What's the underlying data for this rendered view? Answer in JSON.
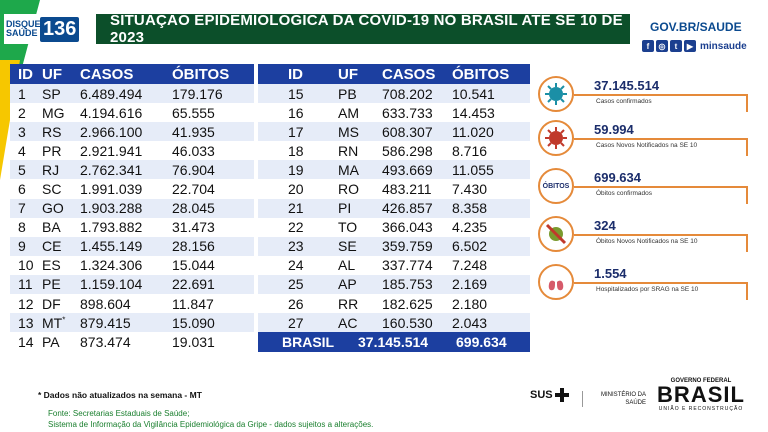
{
  "header": {
    "disque_label": "DISQUE SAÚDE",
    "disque_number": "136",
    "title": "SITUAÇÃO EPIDEMIOLÓGICA DA COVID-19 NO BRASIL ATÉ SE 10 DE 2023",
    "gov_text": "GOV.BR/SAUDE",
    "social_handle": "minsaude"
  },
  "table": {
    "columns": [
      "ID",
      "UF",
      "CASOS",
      "ÓBITOS"
    ],
    "left_rows": [
      {
        "id": "1",
        "uf": "SP",
        "casos": "6.489.494",
        "obitos": "179.176"
      },
      {
        "id": "2",
        "uf": "MG",
        "casos": "4.194.616",
        "obitos": "65.555"
      },
      {
        "id": "3",
        "uf": "RS",
        "casos": "2.966.100",
        "obitos": "41.935"
      },
      {
        "id": "4",
        "uf": "PR",
        "casos": "2.921.941",
        "obitos": "46.033"
      },
      {
        "id": "5",
        "uf": "RJ",
        "casos": "2.762.341",
        "obitos": "76.904"
      },
      {
        "id": "6",
        "uf": "SC",
        "casos": "1.991.039",
        "obitos": "22.704"
      },
      {
        "id": "7",
        "uf": "GO",
        "casos": "1.903.288",
        "obitos": "28.045"
      },
      {
        "id": "8",
        "uf": "BA",
        "casos": "1.793.882",
        "obitos": "31.473"
      },
      {
        "id": "9",
        "uf": "CE",
        "casos": "1.455.149",
        "obitos": "28.156"
      },
      {
        "id": "10",
        "uf": "ES",
        "casos": "1.324.306",
        "obitos": "15.044"
      },
      {
        "id": "11",
        "uf": "PE",
        "casos": "1.159.104",
        "obitos": "22.691"
      },
      {
        "id": "12",
        "uf": "DF",
        "casos": "898.604",
        "obitos": "11.847"
      },
      {
        "id": "13",
        "uf": "MT",
        "uf_mark": "*",
        "casos": "879.415",
        "obitos": "15.090"
      },
      {
        "id": "14",
        "uf": "PA",
        "casos": "873.474",
        "obitos": "19.031"
      }
    ],
    "right_rows": [
      {
        "id": "15",
        "uf": "PB",
        "casos": "708.202",
        "obitos": "10.541"
      },
      {
        "id": "16",
        "uf": "AM",
        "casos": "633.733",
        "obitos": "14.453"
      },
      {
        "id": "17",
        "uf": "MS",
        "casos": "608.307",
        "obitos": "11.020"
      },
      {
        "id": "18",
        "uf": "RN",
        "casos": "586.298",
        "obitos": "8.716"
      },
      {
        "id": "19",
        "uf": "MA",
        "casos": "493.669",
        "obitos": "11.055"
      },
      {
        "id": "20",
        "uf": "RO",
        "casos": "483.211",
        "obitos": "7.430"
      },
      {
        "id": "21",
        "uf": "PI",
        "casos": "426.857",
        "obitos": "8.358"
      },
      {
        "id": "22",
        "uf": "TO",
        "casos": "366.043",
        "obitos": "4.235"
      },
      {
        "id": "23",
        "uf": "SE",
        "casos": "359.759",
        "obitos": "6.502"
      },
      {
        "id": "24",
        "uf": "AL",
        "casos": "337.774",
        "obitos": "7.248"
      },
      {
        "id": "25",
        "uf": "AP",
        "casos": "185.753",
        "obitos": "2.169"
      },
      {
        "id": "26",
        "uf": "RR",
        "casos": "182.625",
        "obitos": "2.180"
      },
      {
        "id": "27",
        "uf": "AC",
        "casos": "160.530",
        "obitos": "2.043"
      }
    ],
    "total": {
      "label": "BRASIL",
      "casos": "37.145.514",
      "obitos": "699.634"
    }
  },
  "stats": [
    {
      "value": "37.145.514",
      "label": "Casos confirmados",
      "icon": "virus-icon"
    },
    {
      "value": "59.994",
      "label": "Casos Novos Notificados na SE 10",
      "icon": "virus-red-icon"
    },
    {
      "value": "699.634",
      "label": "Óbitos confirmados",
      "icon": "obitos-icon",
      "icon_text": "ÓBITOS"
    },
    {
      "value": "324",
      "label": "Óbitos Novos Notificados na SE 10",
      "icon": "virus-crossed-icon"
    },
    {
      "value": "1.554",
      "label": "Hospitalizados por SRAG na SE 10",
      "icon": "lungs-icon"
    }
  ],
  "footer": {
    "note": "* Dados não atualizados na semana - MT",
    "source_line1": "Fonte: Secretarias Estaduais de Saúde;",
    "source_line2": "Sistema de Informação da Vigilância Epidemiológica da Gripe - dados sujeitos a alterações.",
    "sus": "SUS",
    "ministerio": "MINISTÉRIO DA",
    "ministerio2": "SAÚDE",
    "gov_federal": "GOVERNO FEDERAL",
    "brasil": "BRASIL",
    "uniao": "UNIÃO E RECONSTRUÇÃO"
  },
  "colors": {
    "green": "#1ea84b",
    "yellow": "#f6c700",
    "dark_green": "#0c4f2a",
    "blue": "#1c3fa0",
    "orange": "#e58a3a"
  }
}
